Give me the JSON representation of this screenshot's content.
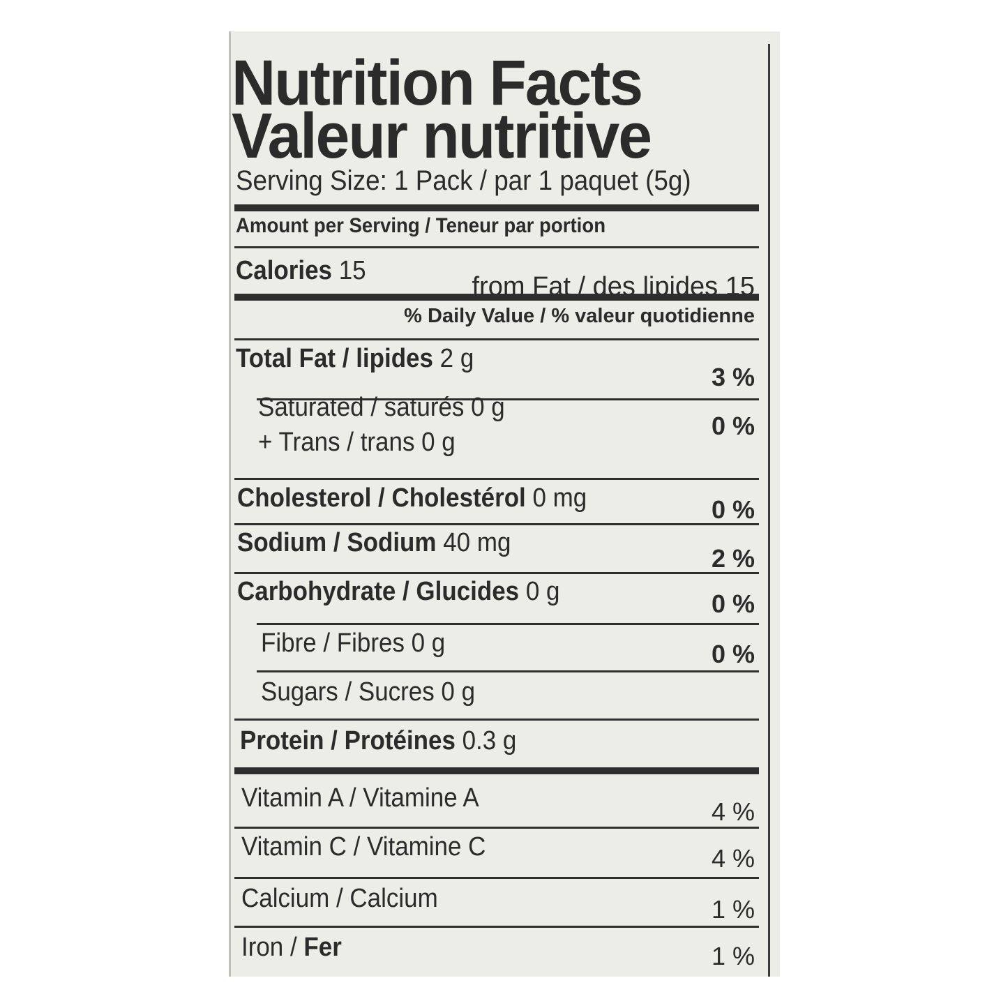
{
  "title_en": "Nutrition Facts",
  "title_fr": "Valeur nutritive",
  "serving_size": "Serving Size: 1 Pack / par 1 paquet (5g)",
  "amount_per_serving": "Amount per Serving / Teneur par portion",
  "calories": {
    "label": "Calories",
    "value": "15",
    "from_fat": "from Fat / des lipides 15"
  },
  "daily_value_header": "% Daily Value / % valeur quotidienne",
  "nutrients": [
    {
      "name": "Total Fat / lipides",
      "amount": "2 g",
      "dv": "3 %"
    },
    {
      "name": "Saturated / saturés 0 g",
      "amount": "",
      "dv": "0 %"
    },
    {
      "name": "+ Trans / trans 0 g",
      "amount": "",
      "dv": ""
    },
    {
      "name": "Cholesterol / Cholestérol",
      "amount": "0 mg",
      "dv": "0 %"
    },
    {
      "name": "Sodium / Sodium",
      "amount": "40 mg",
      "dv": "2 %"
    },
    {
      "name": "Carbohydrate / Glucides",
      "amount": "0 g",
      "dv": "0 %"
    },
    {
      "name": "Fibre / Fibres 0 g",
      "amount": "",
      "dv": "0 %"
    },
    {
      "name": "Sugars / Sucres 0 g",
      "amount": "",
      "dv": ""
    },
    {
      "name": "Protein / Protéines",
      "amount": "0.3 g",
      "dv": ""
    }
  ],
  "vitamins": [
    {
      "name_en": "Vitamin A /",
      "name_fr": "Vitamine A",
      "dv": "4 %"
    },
    {
      "name_en": "Vitamin C /",
      "name_fr": "Vitamine C",
      "dv": "4 %"
    },
    {
      "name_en": "Calcium /",
      "name_fr": "Calcium",
      "dv": "1 %"
    },
    {
      "name_en": "Iron /",
      "name_fr": "Fer",
      "dv": "1 %"
    }
  ]
}
